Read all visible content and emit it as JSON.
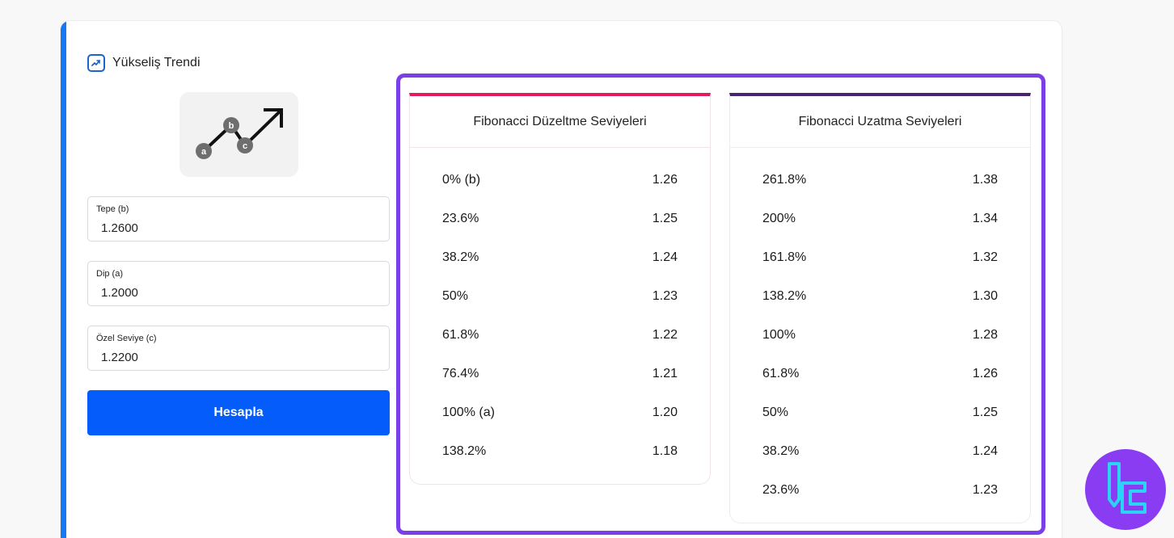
{
  "trend": {
    "title": "Yükseliş Trendi",
    "icon": "trend-up-icon"
  },
  "illustration": {
    "points": [
      "a",
      "b",
      "c"
    ],
    "icon": "trend-arrow-illustration"
  },
  "form": {
    "fields": [
      {
        "label": "Tepe (b)",
        "value": "1.2600"
      },
      {
        "label": "Dip (a)",
        "value": "1.2000"
      },
      {
        "label": "Özel Seviye (c)",
        "value": "1.2200"
      }
    ],
    "button": "Hesapla"
  },
  "retracement": {
    "title": "Fibonacci Düzeltme Seviyeleri",
    "rows": [
      {
        "level": "0% (b)",
        "value": "1.26"
      },
      {
        "level": "23.6%",
        "value": "1.25"
      },
      {
        "level": "38.2%",
        "value": "1.24"
      },
      {
        "level": "50%",
        "value": "1.23"
      },
      {
        "level": "61.8%",
        "value": "1.22"
      },
      {
        "level": "76.4%",
        "value": "1.21"
      },
      {
        "level": "100% (a)",
        "value": "1.20"
      },
      {
        "level": "138.2%",
        "value": "1.18"
      }
    ]
  },
  "extension": {
    "title": "Fibonacci Uzatma Seviyeleri",
    "rows": [
      {
        "level": "261.8%",
        "value": "1.38"
      },
      {
        "level": "200%",
        "value": "1.34"
      },
      {
        "level": "161.8%",
        "value": "1.32"
      },
      {
        "level": "138.2%",
        "value": "1.30"
      },
      {
        "level": "100%",
        "value": "1.28"
      },
      {
        "level": "61.8%",
        "value": "1.26"
      },
      {
        "level": "50%",
        "value": "1.25"
      },
      {
        "level": "38.2%",
        "value": "1.24"
      },
      {
        "level": "23.6%",
        "value": "1.23"
      }
    ]
  },
  "colors": {
    "accent": "#1877f2",
    "button": "#045cfb",
    "panel_border": "#7b3fe9",
    "retracement_bar": "#e5195e",
    "extension_bar": "#4a2272",
    "logo": "#8a3cf3"
  },
  "logo": {
    "icon": "brand-logo-icon"
  }
}
